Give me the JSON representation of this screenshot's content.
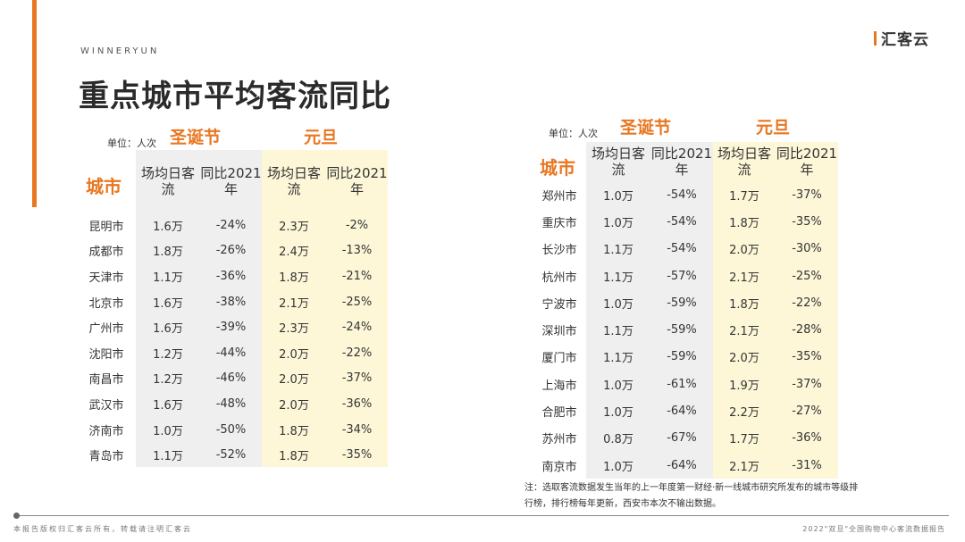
{
  "brand": "WINNERYUN",
  "title": "重点城市平均客流同比",
  "logo_text": "汇客云",
  "left_table": {
    "unit_label": "单位：人次",
    "festival_christmas": "圣诞节",
    "festival_newyear": "元旦",
    "city_header": "城市",
    "col_flow": "场均日客流",
    "col_yoy": "同比2021年",
    "rows": [
      {
        "city": "昆明市",
        "c_flow": "1.6万",
        "c_yoy": "-24%",
        "n_flow": "2.3万",
        "n_yoy": "-2%"
      },
      {
        "city": "成都市",
        "c_flow": "1.8万",
        "c_yoy": "-26%",
        "n_flow": "2.4万",
        "n_yoy": "-13%"
      },
      {
        "city": "天津市",
        "c_flow": "1.1万",
        "c_yoy": "-36%",
        "n_flow": "1.8万",
        "n_yoy": "-21%"
      },
      {
        "city": "北京市",
        "c_flow": "1.6万",
        "c_yoy": "-38%",
        "n_flow": "2.1万",
        "n_yoy": "-25%"
      },
      {
        "city": "广州市",
        "c_flow": "1.6万",
        "c_yoy": "-39%",
        "n_flow": "2.3万",
        "n_yoy": "-24%"
      },
      {
        "city": "沈阳市",
        "c_flow": "1.2万",
        "c_yoy": "-44%",
        "n_flow": "2.0万",
        "n_yoy": "-22%"
      },
      {
        "city": "南昌市",
        "c_flow": "1.2万",
        "c_yoy": "-46%",
        "n_flow": "2.0万",
        "n_yoy": "-37%"
      },
      {
        "city": "武汉市",
        "c_flow": "1.6万",
        "c_yoy": "-48%",
        "n_flow": "2.0万",
        "n_yoy": "-36%"
      },
      {
        "city": "济南市",
        "c_flow": "1.0万",
        "c_yoy": "-50%",
        "n_flow": "1.8万",
        "n_yoy": "-34%"
      },
      {
        "city": "青岛市",
        "c_flow": "1.1万",
        "c_yoy": "-52%",
        "n_flow": "1.8万",
        "n_yoy": "-35%"
      }
    ]
  },
  "right_table": {
    "unit_label": "单位：人次",
    "festival_christmas": "圣诞节",
    "festival_newyear": "元旦",
    "city_header": "城市",
    "col_flow": "场均日客流",
    "col_yoy": "同比2021年",
    "rows": [
      {
        "city": "郑州市",
        "c_flow": "1.0万",
        "c_yoy": "-54%",
        "n_flow": "1.7万",
        "n_yoy": "-37%"
      },
      {
        "city": "重庆市",
        "c_flow": "1.0万",
        "c_yoy": "-54%",
        "n_flow": "1.8万",
        "n_yoy": "-35%"
      },
      {
        "city": "长沙市",
        "c_flow": "1.1万",
        "c_yoy": "-54%",
        "n_flow": "2.0万",
        "n_yoy": "-30%"
      },
      {
        "city": "杭州市",
        "c_flow": "1.1万",
        "c_yoy": "-57%",
        "n_flow": "2.1万",
        "n_yoy": "-25%"
      },
      {
        "city": "宁波市",
        "c_flow": "1.0万",
        "c_yoy": "-59%",
        "n_flow": "1.8万",
        "n_yoy": "-22%"
      },
      {
        "city": "深圳市",
        "c_flow": "1.1万",
        "c_yoy": "-59%",
        "n_flow": "2.1万",
        "n_yoy": "-28%"
      },
      {
        "city": "厦门市",
        "c_flow": "1.1万",
        "c_yoy": "-59%",
        "n_flow": "2.0万",
        "n_yoy": "-35%"
      },
      {
        "city": "上海市",
        "c_flow": "1.0万",
        "c_yoy": "-61%",
        "n_flow": "1.9万",
        "n_yoy": "-37%"
      },
      {
        "city": "合肥市",
        "c_flow": "1.0万",
        "c_yoy": "-64%",
        "n_flow": "2.2万",
        "n_yoy": "-27%"
      },
      {
        "city": "苏州市",
        "c_flow": "0.8万",
        "c_yoy": "-67%",
        "n_flow": "1.7万",
        "n_yoy": "-36%"
      },
      {
        "city": "南京市",
        "c_flow": "1.0万",
        "c_yoy": "-64%",
        "n_flow": "2.1万",
        "n_yoy": "-31%"
      }
    ]
  },
  "note_line1": "注：选取客流数据发生当年的上一年度第一财经·新一线城市研究所发布的城市等级排",
  "note_line2": "行榜，排行榜每年更新，西安市本次不输出数据。",
  "footer_left": "本报告版权归汇客云所有，转载请注明汇客云",
  "footer_right": "2022\"双旦\"全国购物中心客流数据报告",
  "colors": {
    "accent": "#e87722",
    "shade_gray": "#efefef",
    "shade_yellow": "#fdf7d8"
  }
}
